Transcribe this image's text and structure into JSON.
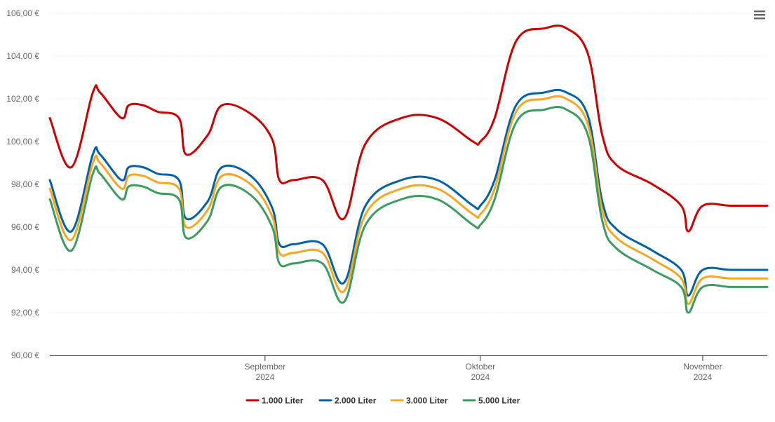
{
  "chart_data": {
    "type": "line",
    "title": "",
    "xlabel": "",
    "ylabel": "",
    "ylim": [
      90,
      106
    ],
    "yticks": [
      "90,00 €",
      "92,00 €",
      "94,00 €",
      "96,00 €",
      "98,00 €",
      "100,00 €",
      "102,00 €",
      "104,00 €",
      "106,00 €"
    ],
    "xticks": [
      {
        "date": "2024-09-01",
        "line1": "September",
        "line2": "2024"
      },
      {
        "date": "2024-10-01",
        "line1": "Oktober",
        "line2": "2024"
      },
      {
        "date": "2024-11-01",
        "line1": "November",
        "line2": "2024"
      }
    ],
    "xlim": [
      "2024-08-02",
      "2024-11-10"
    ],
    "grid": true,
    "legend_position": "bottom-center",
    "x": [
      "2024-08-02",
      "2024-08-05",
      "2024-08-08",
      "2024-08-09",
      "2024-08-12",
      "2024-08-13",
      "2024-08-15",
      "2024-08-17",
      "2024-08-20",
      "2024-08-21",
      "2024-08-24",
      "2024-08-26",
      "2024-08-30",
      "2024-09-02",
      "2024-09-03",
      "2024-09-05",
      "2024-09-09",
      "2024-09-12",
      "2024-09-15",
      "2024-09-20",
      "2024-09-25",
      "2024-09-30",
      "2024-10-01",
      "2024-10-03",
      "2024-10-06",
      "2024-10-10",
      "2024-10-13",
      "2024-10-16",
      "2024-10-18",
      "2024-10-20",
      "2024-10-25",
      "2024-10-29",
      "2024-10-30",
      "2024-11-01",
      "2024-11-05",
      "2024-11-10"
    ],
    "series": [
      {
        "name": "1.000 Liter",
        "color": "#cc0000",
        "values": [
          101.1,
          98.8,
          102.3,
          102.3,
          101.1,
          101.7,
          101.7,
          101.4,
          101.1,
          99.4,
          100.3,
          101.7,
          101.3,
          100.1,
          98.2,
          98.2,
          98.2,
          96.4,
          99.9,
          101.1,
          101.1,
          100.0,
          100.0,
          101.1,
          104.7,
          105.3,
          105.3,
          104.1,
          100.3,
          98.9,
          98.0,
          97.0,
          95.8,
          97.0,
          97.0,
          97.0
        ]
      },
      {
        "name": "2.000 Liter",
        "color": "#0060a8",
        "values": [
          98.2,
          95.8,
          99.4,
          99.4,
          98.2,
          98.8,
          98.8,
          98.5,
          98.2,
          96.4,
          97.2,
          98.8,
          98.4,
          96.9,
          95.2,
          95.2,
          95.2,
          93.4,
          97.0,
          98.2,
          98.2,
          97.0,
          97.0,
          98.2,
          101.7,
          102.3,
          102.3,
          101.2,
          97.2,
          95.9,
          94.9,
          94.0,
          92.8,
          94.0,
          94.0,
          94.0
        ]
      },
      {
        "name": "3.000 Liter",
        "color": "#f5a623",
        "values": [
          97.8,
          95.4,
          99.0,
          99.0,
          97.8,
          98.4,
          98.4,
          98.1,
          97.8,
          96.0,
          96.8,
          98.4,
          98.0,
          96.5,
          94.8,
          94.8,
          94.8,
          93.0,
          96.6,
          97.8,
          97.8,
          96.6,
          96.6,
          97.8,
          101.4,
          102.0,
          102.0,
          100.8,
          96.8,
          95.5,
          94.5,
          93.6,
          92.4,
          93.6,
          93.6,
          93.6
        ]
      },
      {
        "name": "5.000 Liter",
        "color": "#3a9d5d",
        "values": [
          97.3,
          94.9,
          98.5,
          98.5,
          97.3,
          97.9,
          97.9,
          97.6,
          97.3,
          95.5,
          96.3,
          97.9,
          97.5,
          96.0,
          94.3,
          94.3,
          94.3,
          92.5,
          96.1,
          97.3,
          97.3,
          96.1,
          96.1,
          97.3,
          100.9,
          101.5,
          101.5,
          100.3,
          96.3,
          95.0,
          94.0,
          93.2,
          92.0,
          93.2,
          93.2,
          93.2
        ]
      }
    ]
  },
  "menu": {
    "icon": "hamburger-menu-icon"
  }
}
